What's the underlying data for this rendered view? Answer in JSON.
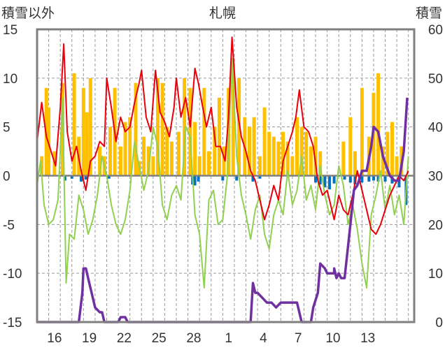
{
  "chart_data": {
    "type": "line",
    "title": "札幌",
    "left_axis_label": "積雪以外",
    "right_axis_label": "積雪",
    "left_ylim": [
      -15,
      15
    ],
    "left_ticks": [
      -15,
      -10,
      -5,
      0,
      5,
      10,
      15
    ],
    "right_ylim": [
      0,
      60
    ],
    "right_ticks": [
      0,
      10,
      20,
      30,
      40,
      50,
      60
    ],
    "x_range": [
      0,
      32.5
    ],
    "x_ticks": [
      {
        "label": "16",
        "pos": 1.5
      },
      {
        "label": "19",
        "pos": 4.5
      },
      {
        "label": "22",
        "pos": 7.5
      },
      {
        "label": "25",
        "pos": 10.5
      },
      {
        "label": "28",
        "pos": 13.5
      },
      {
        "label": "1",
        "pos": 16.5
      },
      {
        "label": "4",
        "pos": 19.5
      },
      {
        "label": "7",
        "pos": 22.5
      },
      {
        "label": "10",
        "pos": 25.5
      },
      {
        "label": "13",
        "pos": 28.5
      }
    ],
    "grid": "dashed-vertical-and-horizontal",
    "colors": {
      "temperature": "#e8000b",
      "dewpoint": "#92d050",
      "precip": "#ffc000",
      "snow_change": "#0070c0",
      "snow_depth": "#7030a0",
      "zero_line": "#7f7f7f",
      "frame": "#7f7f7f",
      "grid": "#9a9a9a"
    },
    "series": [
      {
        "key": "temperature",
        "axis": "left",
        "values": [
          [
            0.0,
            3.5
          ],
          [
            0.4,
            7.5
          ],
          [
            0.8,
            4.0
          ],
          [
            1.2,
            2.5
          ],
          [
            1.6,
            1.0
          ],
          [
            2.0,
            7.0
          ],
          [
            2.3,
            13.5
          ],
          [
            2.6,
            4.5
          ],
          [
            3.0,
            1.5
          ],
          [
            3.4,
            3.0
          ],
          [
            3.8,
            0.5
          ],
          [
            4.2,
            -1.5
          ],
          [
            4.6,
            1.5
          ],
          [
            5.0,
            2.0
          ],
          [
            5.4,
            3.5
          ],
          [
            5.8,
            3.0
          ],
          [
            6.0,
            10.0
          ],
          [
            6.4,
            7.0
          ],
          [
            6.8,
            3.5
          ],
          [
            7.2,
            6.0
          ],
          [
            7.6,
            4.5
          ],
          [
            8.0,
            5.0
          ],
          [
            8.4,
            7.5
          ],
          [
            8.8,
            9.5
          ],
          [
            9.0,
            10.8
          ],
          [
            9.4,
            6.0
          ],
          [
            9.8,
            4.5
          ],
          [
            10.2,
            10.8
          ],
          [
            10.6,
            6.5
          ],
          [
            11.0,
            5.5
          ],
          [
            11.4,
            4.0
          ],
          [
            11.8,
            7.0
          ],
          [
            12.0,
            10.0
          ],
          [
            12.4,
            6.0
          ],
          [
            12.8,
            8.0
          ],
          [
            13.2,
            5.0
          ],
          [
            13.6,
            11.0
          ],
          [
            13.9,
            9.5
          ],
          [
            14.2,
            7.5
          ],
          [
            14.6,
            5.0
          ],
          [
            15.0,
            7.0
          ],
          [
            15.4,
            3.0
          ],
          [
            15.8,
            3.0
          ],
          [
            16.2,
            1.5
          ],
          [
            16.5,
            6.0
          ],
          [
            16.8,
            14.2
          ],
          [
            17.2,
            7.0
          ],
          [
            17.6,
            4.0
          ],
          [
            18.0,
            2.5
          ],
          [
            18.4,
            0.5
          ],
          [
            18.8,
            -0.5
          ],
          [
            19.2,
            -2.5
          ],
          [
            19.6,
            -4.5
          ],
          [
            20.0,
            -3.0
          ],
          [
            20.4,
            -1.0
          ],
          [
            20.8,
            -2.5
          ],
          [
            21.2,
            1.5
          ],
          [
            21.6,
            3.0
          ],
          [
            22.0,
            4.5
          ],
          [
            22.3,
            6.0
          ],
          [
            22.6,
            8.8
          ],
          [
            23.0,
            5.0
          ],
          [
            23.4,
            4.5
          ],
          [
            23.8,
            3.0
          ],
          [
            24.2,
            -0.5
          ],
          [
            24.6,
            -2.0
          ],
          [
            25.0,
            -1.5
          ],
          [
            25.3,
            -3.0
          ],
          [
            25.6,
            -4.5
          ],
          [
            26.0,
            -2.0
          ],
          [
            26.4,
            -3.5
          ],
          [
            26.8,
            -4.0
          ],
          [
            27.2,
            -2.0
          ],
          [
            27.6,
            0.5
          ],
          [
            28.0,
            -1.5
          ],
          [
            28.4,
            -3.5
          ],
          [
            28.8,
            -5.5
          ],
          [
            29.2,
            -6.0
          ],
          [
            29.6,
            -5.0
          ],
          [
            30.0,
            -3.5
          ],
          [
            30.4,
            -2.0
          ],
          [
            30.8,
            -1.0
          ],
          [
            31.2,
            0.0
          ],
          [
            31.6,
            -0.5
          ],
          [
            32.0,
            0.5
          ]
        ]
      },
      {
        "key": "dewpoint",
        "axis": "left",
        "values": [
          [
            0.0,
            -1.0
          ],
          [
            0.3,
            1.5
          ],
          [
            0.6,
            -3.0
          ],
          [
            1.0,
            -5.0
          ],
          [
            1.4,
            -4.5
          ],
          [
            1.8,
            -2.5
          ],
          [
            2.2,
            8.0
          ],
          [
            2.5,
            -11.0
          ],
          [
            2.8,
            -6.0
          ],
          [
            3.2,
            -6.5
          ],
          [
            3.6,
            -2.0
          ],
          [
            4.0,
            -3.5
          ],
          [
            4.4,
            -6.0
          ],
          [
            4.8,
            -4.5
          ],
          [
            5.2,
            -2.0
          ],
          [
            5.6,
            2.0
          ],
          [
            6.0,
            0.0
          ],
          [
            6.4,
            -3.0
          ],
          [
            6.8,
            -5.0
          ],
          [
            7.2,
            -6.0
          ],
          [
            7.6,
            -4.5
          ],
          [
            8.0,
            -1.5
          ],
          [
            8.4,
            3.5
          ],
          [
            8.8,
            1.0
          ],
          [
            9.2,
            -1.5
          ],
          [
            9.6,
            0.5
          ],
          [
            10.0,
            5.0
          ],
          [
            10.4,
            3.0
          ],
          [
            10.8,
            -3.0
          ],
          [
            11.2,
            -4.5
          ],
          [
            11.6,
            -2.0
          ],
          [
            12.0,
            -1.0
          ],
          [
            12.4,
            -2.5
          ],
          [
            12.8,
            5.0
          ],
          [
            13.2,
            4.0
          ],
          [
            13.6,
            -4.0
          ],
          [
            14.0,
            -6.0
          ],
          [
            14.4,
            -11.5
          ],
          [
            14.8,
            -2.5
          ],
          [
            15.2,
            -1.5
          ],
          [
            15.6,
            -5.0
          ],
          [
            16.0,
            -4.5
          ],
          [
            16.4,
            0.0
          ],
          [
            16.8,
            12.0
          ],
          [
            17.2,
            2.0
          ],
          [
            17.6,
            -2.0
          ],
          [
            18.0,
            -4.0
          ],
          [
            18.4,
            -6.5
          ],
          [
            18.8,
            -3.5
          ],
          [
            19.2,
            -2.0
          ],
          [
            19.6,
            -6.0
          ],
          [
            20.0,
            -7.5
          ],
          [
            20.4,
            -4.0
          ],
          [
            20.8,
            -2.5
          ],
          [
            21.2,
            -4.0
          ],
          [
            21.6,
            0.5
          ],
          [
            22.0,
            -3.0
          ],
          [
            22.4,
            -1.5
          ],
          [
            22.8,
            2.0
          ],
          [
            23.2,
            -2.5
          ],
          [
            23.6,
            -1.0
          ],
          [
            24.0,
            -3.5
          ],
          [
            24.4,
            1.0
          ],
          [
            24.8,
            -2.0
          ],
          [
            25.2,
            -4.0
          ],
          [
            25.6,
            -3.0
          ],
          [
            26.0,
            1.0
          ],
          [
            26.4,
            -1.0
          ],
          [
            26.8,
            -5.0
          ],
          [
            27.2,
            -3.0
          ],
          [
            27.6,
            -5.5
          ],
          [
            28.0,
            -9.0
          ],
          [
            28.4,
            -11.5
          ],
          [
            28.8,
            -4.0
          ],
          [
            29.2,
            -2.0
          ],
          [
            29.6,
            0.5
          ],
          [
            30.0,
            -3.5
          ],
          [
            30.4,
            -1.0
          ],
          [
            30.8,
            -4.0
          ],
          [
            31.2,
            -2.0
          ],
          [
            31.6,
            -5.0
          ],
          [
            32.0,
            2.0
          ]
        ]
      },
      {
        "key": "snow_depth",
        "axis": "right",
        "values": [
          [
            0.0,
            0
          ],
          [
            3.6,
            0
          ],
          [
            3.9,
            6
          ],
          [
            4.0,
            11
          ],
          [
            4.2,
            11
          ],
          [
            4.5,
            8
          ],
          [
            4.8,
            5
          ],
          [
            5.0,
            3
          ],
          [
            5.4,
            2
          ],
          [
            5.6,
            2
          ],
          [
            5.8,
            0
          ],
          [
            6.0,
            0
          ],
          [
            7.0,
            0
          ],
          [
            7.2,
            1
          ],
          [
            7.6,
            1
          ],
          [
            7.8,
            0
          ],
          [
            18.4,
            0
          ],
          [
            18.6,
            8
          ],
          [
            18.8,
            6
          ],
          [
            19.0,
            6
          ],
          [
            19.4,
            5
          ],
          [
            19.8,
            4
          ],
          [
            20.2,
            4
          ],
          [
            20.6,
            3
          ],
          [
            21.0,
            4
          ],
          [
            21.4,
            4
          ],
          [
            22.0,
            4
          ],
          [
            22.4,
            4
          ],
          [
            22.6,
            2
          ],
          [
            22.8,
            0
          ],
          [
            23.6,
            0
          ],
          [
            23.8,
            3
          ],
          [
            24.2,
            6
          ],
          [
            24.4,
            12
          ],
          [
            24.8,
            11
          ],
          [
            25.0,
            10
          ],
          [
            25.4,
            10
          ],
          [
            25.6,
            10
          ],
          [
            25.6,
            11
          ],
          [
            25.8,
            9
          ],
          [
            26.0,
            10
          ],
          [
            26.2,
            9
          ],
          [
            26.5,
            9
          ],
          [
            27.0,
            20
          ],
          [
            27.3,
            27
          ],
          [
            27.6,
            28
          ],
          [
            28.0,
            31
          ],
          [
            28.4,
            31
          ],
          [
            28.8,
            36
          ],
          [
            29.0,
            40
          ],
          [
            29.4,
            39
          ],
          [
            29.8,
            34
          ],
          [
            30.4,
            30
          ],
          [
            30.8,
            29
          ],
          [
            31.2,
            29
          ],
          [
            31.6,
            35
          ],
          [
            31.9,
            46
          ]
        ]
      }
    ],
    "precip": [
      [
        0.4,
        2.0
      ],
      [
        0.8,
        9.0
      ],
      [
        1.0,
        7.0
      ],
      [
        1.5,
        2.5
      ],
      [
        2.2,
        9.5
      ],
      [
        3.2,
        10.5
      ],
      [
        3.6,
        4.0
      ],
      [
        4.0,
        9.0
      ],
      [
        4.3,
        6.5
      ],
      [
        4.6,
        10.0
      ],
      [
        5.4,
        3.0
      ],
      [
        5.8,
        2.0
      ],
      [
        6.3,
        5.0
      ],
      [
        6.7,
        9.0
      ],
      [
        7.2,
        3.0
      ],
      [
        7.6,
        5.5
      ],
      [
        8.0,
        6.0
      ],
      [
        8.5,
        9.5
      ],
      [
        8.8,
        1.5
      ],
      [
        9.2,
        4.0
      ],
      [
        9.6,
        3.0
      ],
      [
        10.0,
        2.0
      ],
      [
        10.4,
        10.0
      ],
      [
        10.8,
        9.5
      ],
      [
        11.2,
        5.0
      ],
      [
        11.6,
        3.5
      ],
      [
        12.2,
        4.5
      ],
      [
        12.7,
        10.0
      ],
      [
        13.2,
        9.0
      ],
      [
        13.6,
        5.5
      ],
      [
        14.0,
        2.0
      ],
      [
        14.4,
        9.0
      ],
      [
        14.8,
        2.5
      ],
      [
        15.3,
        5.0
      ],
      [
        15.7,
        8.0
      ],
      [
        16.1,
        3.0
      ],
      [
        16.5,
        9.0
      ],
      [
        16.9,
        11.5
      ],
      [
        17.4,
        10.0
      ],
      [
        17.9,
        6.0
      ],
      [
        18.3,
        5.0
      ],
      [
        18.7,
        6.0
      ],
      [
        19.2,
        2.0
      ],
      [
        19.6,
        7.0
      ],
      [
        20.0,
        4.5
      ],
      [
        20.4,
        4.0
      ],
      [
        20.8,
        3.5
      ],
      [
        21.2,
        4.5
      ],
      [
        21.6,
        3.5
      ],
      [
        22.0,
        2.0
      ],
      [
        22.4,
        6.0
      ],
      [
        22.8,
        5.0
      ],
      [
        23.2,
        4.5
      ],
      [
        23.6,
        3.0
      ],
      [
        24.0,
        4.0
      ],
      [
        24.4,
        2.5
      ],
      [
        26.4,
        3.5
      ],
      [
        27.0,
        6.0
      ],
      [
        27.4,
        2.5
      ],
      [
        28.0,
        9.0
      ],
      [
        28.6,
        4.0
      ],
      [
        29.0,
        8.5
      ],
      [
        29.4,
        10.5
      ],
      [
        29.8,
        3.0
      ],
      [
        30.2,
        4.5
      ],
      [
        30.6,
        5.5
      ],
      [
        31.0,
        2.0
      ],
      [
        31.4,
        3.0
      ]
    ],
    "snow_change": [
      [
        2.4,
        -0.5
      ],
      [
        3.0,
        -0.3
      ],
      [
        3.8,
        -0.6
      ],
      [
        4.2,
        -0.4
      ],
      [
        6.2,
        -0.3
      ],
      [
        13.4,
        -0.9
      ],
      [
        13.6,
        -1.0
      ],
      [
        13.9,
        -0.6
      ],
      [
        16.0,
        -0.5
      ],
      [
        17.2,
        -0.5
      ],
      [
        18.6,
        -0.6
      ],
      [
        19.2,
        -0.3
      ],
      [
        24.0,
        -0.7
      ],
      [
        24.4,
        -0.9
      ],
      [
        24.8,
        -1.2
      ],
      [
        25.2,
        -1.4
      ],
      [
        25.6,
        -0.8
      ],
      [
        26.5,
        -0.4
      ],
      [
        27.0,
        -0.7
      ],
      [
        27.4,
        -0.9
      ],
      [
        28.0,
        -0.7
      ],
      [
        28.6,
        -0.6
      ],
      [
        29.0,
        -0.5
      ],
      [
        29.4,
        -0.6
      ],
      [
        30.0,
        -0.6
      ],
      [
        30.6,
        -0.8
      ],
      [
        31.2,
        -1.2
      ],
      [
        31.8,
        -3.0
      ]
    ]
  }
}
